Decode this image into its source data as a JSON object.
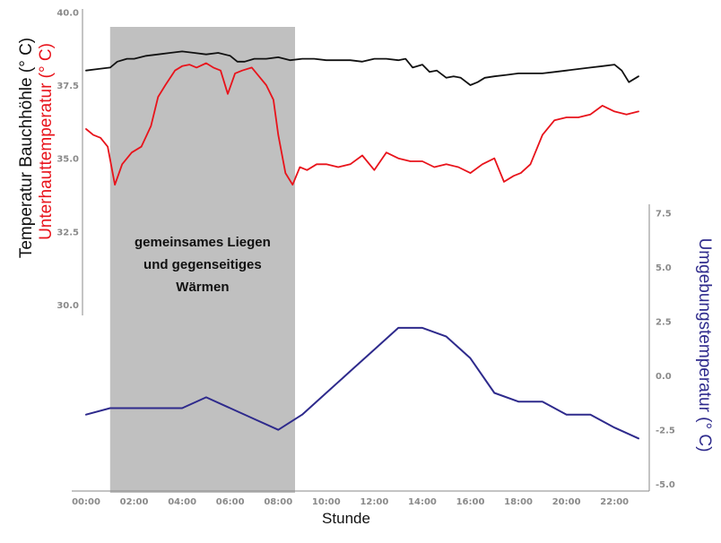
{
  "chart_data": {
    "type": "line",
    "xlabel": "Stunde",
    "ylabel_left": [
      "Temperatur Bauchhöhle (° C)",
      "Unterhauttemperatur (° C)"
    ],
    "ylabel_right": "Umgebungstemperatur (° C)",
    "x_ticks": [
      "00:00",
      "02:00",
      "04:00",
      "06:00",
      "08:00",
      "10:00",
      "12:00",
      "14:00",
      "16:00",
      "18:00",
      "20:00",
      "22:00"
    ],
    "y_left_ticks": [
      "30.0",
      "32.5",
      "35.0",
      "37.5",
      "40.0"
    ],
    "y_right_ticks": [
      "-5.0",
      "-2.5",
      "0.0",
      "2.5",
      "5.0",
      "7.5"
    ],
    "ylim_left": [
      29.7,
      40.1
    ],
    "ylim_right": [
      -5.2,
      7.9
    ],
    "xlim": [
      0,
      23
    ],
    "annotation": {
      "lines": [
        "gemeinsames Liegen",
        "und gegenseitiges",
        "Wärmen"
      ],
      "x_start": 1.0,
      "x_end": 8.7
    },
    "colors": {
      "core": "#111111",
      "skin": "#e8131b",
      "ambient": "#2e2a8c",
      "shade": "#c0c0c0",
      "axis": "#8a8a8a"
    },
    "series": [
      {
        "axis": "left",
        "color": "#111111",
        "points": [
          [
            0,
            38.0
          ],
          [
            0.5,
            38.05
          ],
          [
            1.0,
            38.1
          ],
          [
            1.3,
            38.3
          ],
          [
            1.7,
            38.4
          ],
          [
            2.0,
            38.4
          ],
          [
            2.5,
            38.5
          ],
          [
            3.0,
            38.55
          ],
          [
            3.5,
            38.6
          ],
          [
            4.0,
            38.65
          ],
          [
            4.5,
            38.6
          ],
          [
            5.0,
            38.55
          ],
          [
            5.5,
            38.6
          ],
          [
            6.0,
            38.5
          ],
          [
            6.3,
            38.3
          ],
          [
            6.6,
            38.3
          ],
          [
            7.0,
            38.4
          ],
          [
            7.5,
            38.4
          ],
          [
            8.0,
            38.45
          ],
          [
            8.5,
            38.35
          ],
          [
            9.0,
            38.4
          ],
          [
            9.5,
            38.4
          ],
          [
            10.0,
            38.35
          ],
          [
            10.5,
            38.35
          ],
          [
            11.0,
            38.35
          ],
          [
            11.5,
            38.3
          ],
          [
            12.0,
            38.4
          ],
          [
            12.5,
            38.4
          ],
          [
            13.0,
            38.35
          ],
          [
            13.3,
            38.4
          ],
          [
            13.6,
            38.1
          ],
          [
            14.0,
            38.2
          ],
          [
            14.3,
            37.95
          ],
          [
            14.6,
            38.0
          ],
          [
            15.0,
            37.75
          ],
          [
            15.3,
            37.8
          ],
          [
            15.6,
            37.75
          ],
          [
            16.0,
            37.5
          ],
          [
            16.3,
            37.6
          ],
          [
            16.6,
            37.75
          ],
          [
            17.0,
            37.8
          ],
          [
            17.5,
            37.85
          ],
          [
            18.0,
            37.9
          ],
          [
            18.5,
            37.9
          ],
          [
            19.0,
            37.9
          ],
          [
            19.5,
            37.95
          ],
          [
            20.0,
            38.0
          ],
          [
            20.5,
            38.05
          ],
          [
            21.0,
            38.1
          ],
          [
            21.5,
            38.15
          ],
          [
            22.0,
            38.2
          ],
          [
            22.3,
            38.0
          ],
          [
            22.6,
            37.6
          ],
          [
            23.0,
            37.8
          ]
        ]
      },
      {
        "axis": "left",
        "color": "#e8131b",
        "points": [
          [
            0,
            36.0
          ],
          [
            0.3,
            35.8
          ],
          [
            0.6,
            35.7
          ],
          [
            0.9,
            35.4
          ],
          [
            1.2,
            34.1
          ],
          [
            1.5,
            34.8
          ],
          [
            1.9,
            35.2
          ],
          [
            2.3,
            35.4
          ],
          [
            2.7,
            36.1
          ],
          [
            3.0,
            37.1
          ],
          [
            3.3,
            37.5
          ],
          [
            3.7,
            38.0
          ],
          [
            4.0,
            38.15
          ],
          [
            4.3,
            38.2
          ],
          [
            4.6,
            38.1
          ],
          [
            5.0,
            38.25
          ],
          [
            5.3,
            38.1
          ],
          [
            5.6,
            38.0
          ],
          [
            5.9,
            37.2
          ],
          [
            6.2,
            37.9
          ],
          [
            6.5,
            38.0
          ],
          [
            6.9,
            38.1
          ],
          [
            7.2,
            37.8
          ],
          [
            7.5,
            37.5
          ],
          [
            7.8,
            37.0
          ],
          [
            8.0,
            35.8
          ],
          [
            8.3,
            34.5
          ],
          [
            8.6,
            34.1
          ],
          [
            8.9,
            34.7
          ],
          [
            9.2,
            34.6
          ],
          [
            9.6,
            34.8
          ],
          [
            10.0,
            34.8
          ],
          [
            10.5,
            34.7
          ],
          [
            11.0,
            34.8
          ],
          [
            11.5,
            35.1
          ],
          [
            12.0,
            34.6
          ],
          [
            12.5,
            35.2
          ],
          [
            13.0,
            35.0
          ],
          [
            13.5,
            34.9
          ],
          [
            14.0,
            34.9
          ],
          [
            14.5,
            34.7
          ],
          [
            15.0,
            34.8
          ],
          [
            15.5,
            34.7
          ],
          [
            16.0,
            34.5
          ],
          [
            16.5,
            34.8
          ],
          [
            17.0,
            35.0
          ],
          [
            17.4,
            34.2
          ],
          [
            17.8,
            34.4
          ],
          [
            18.1,
            34.5
          ],
          [
            18.5,
            34.8
          ],
          [
            19.0,
            35.8
          ],
          [
            19.5,
            36.3
          ],
          [
            20.0,
            36.4
          ],
          [
            20.5,
            36.4
          ],
          [
            21.0,
            36.5
          ],
          [
            21.5,
            36.8
          ],
          [
            22.0,
            36.6
          ],
          [
            22.5,
            36.5
          ],
          [
            23.0,
            36.6
          ]
        ]
      },
      {
        "axis": "right",
        "color": "#2e2a8c",
        "points": [
          [
            0,
            -1.8
          ],
          [
            1,
            -1.5
          ],
          [
            2,
            -1.5
          ],
          [
            3,
            -1.5
          ],
          [
            4,
            -1.5
          ],
          [
            5,
            -1.0
          ],
          [
            6,
            -1.5
          ],
          [
            7,
            -2.0
          ],
          [
            8,
            -2.5
          ],
          [
            9,
            -1.8
          ],
          [
            10,
            -0.8
          ],
          [
            11,
            0.2
          ],
          [
            12,
            1.2
          ],
          [
            13,
            2.2
          ],
          [
            14,
            2.2
          ],
          [
            15,
            1.8
          ],
          [
            16,
            0.8
          ],
          [
            17,
            -0.8
          ],
          [
            18,
            -1.2
          ],
          [
            19,
            -1.2
          ],
          [
            20,
            -1.8
          ],
          [
            21,
            -1.8
          ],
          [
            22,
            -2.4
          ],
          [
            23,
            -2.9
          ]
        ]
      }
    ]
  }
}
